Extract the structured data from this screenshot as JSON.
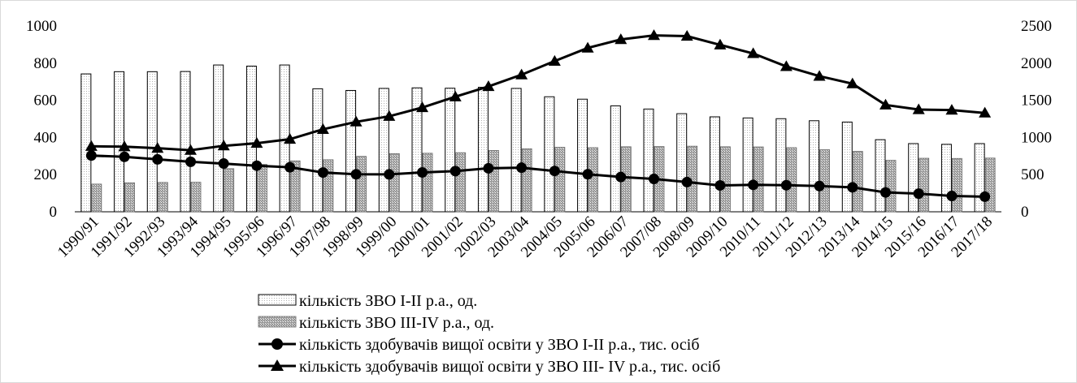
{
  "chart_data": {
    "type": "bar",
    "categories": [
      "1990/91",
      "1991/92",
      "1992/93",
      "1993/94",
      "1994/95",
      "1995/96",
      "1996/97",
      "1997/98",
      "1998/99",
      "1999/00",
      "2000/01",
      "2001/02",
      "2002/03",
      "2003/04",
      "2004/05",
      "2005/06",
      "2006/07",
      "2007/08",
      "2008/09",
      "2009/10",
      "2010/11",
      "2011/12",
      "2012/13",
      "2013/14",
      "2014/15",
      "2015/16",
      "2016/17",
      "2017/18"
    ],
    "left_axis": {
      "ylim": [
        0,
        1000
      ],
      "ticks": [
        "0",
        "200",
        "400",
        "600",
        "800",
        "1000"
      ]
    },
    "right_axis": {
      "ylim": [
        0,
        2500
      ],
      "ticks": [
        "0",
        "500",
        "1000",
        "1500",
        "2000",
        "2500"
      ]
    },
    "grid": false,
    "legend_position": "bottom",
    "series": [
      {
        "name": "кількість ЗВО І-ІІ р.а., од.",
        "kind": "bar",
        "axis": "left",
        "pattern": "dotted",
        "values": [
          742,
          754,
          754,
          755,
          790,
          784,
          790,
          662,
          653,
          664,
          667,
          665,
          670,
          664,
          619,
          606,
          570,
          553,
          528,
          511,
          505,
          501,
          490,
          483,
          388,
          367,
          363,
          367
        ]
      },
      {
        "name": "кількість ЗВО ІІІ-IV р.а., од.",
        "kind": "bar",
        "axis": "left",
        "pattern": "dense",
        "values": [
          149,
          156,
          158,
          159,
          232,
          255,
          274,
          280,
          298,
          313,
          315,
          318,
          330,
          339,
          347,
          345,
          350,
          351,
          353,
          350,
          349,
          345,
          334,
          325,
          277,
          288,
          287,
          289
        ]
      },
      {
        "name": "кількість здобувачів вищої освіти у ЗВО І-ІІ р.а., тис. осіб",
        "kind": "line",
        "axis": "right",
        "marker": "circle",
        "values": [
          757,
          739,
          705,
          673,
          649,
          620,
          599,
          528,
          504,
          503,
          529,
          547,
          585,
          593,
          549,
          505,
          468,
          442,
          400,
          355,
          362,
          357,
          346,
          329,
          261,
          244,
          213,
          203
        ]
      },
      {
        "name": "кількість здобувачів вищої освіти у ЗВО ІІІ- IV р.а., тис. осіб",
        "kind": "line",
        "axis": "right",
        "marker": "triangle",
        "values": [
          881,
          876,
          856,
          829,
          888,
          923,
          977,
          1110,
          1210,
          1285,
          1403,
          1548,
          1686,
          1844,
          2027,
          2204,
          2319,
          2373,
          2364,
          2246,
          2130,
          1955,
          1825,
          1723,
          1438,
          1375,
          1369,
          1330
        ]
      }
    ]
  }
}
